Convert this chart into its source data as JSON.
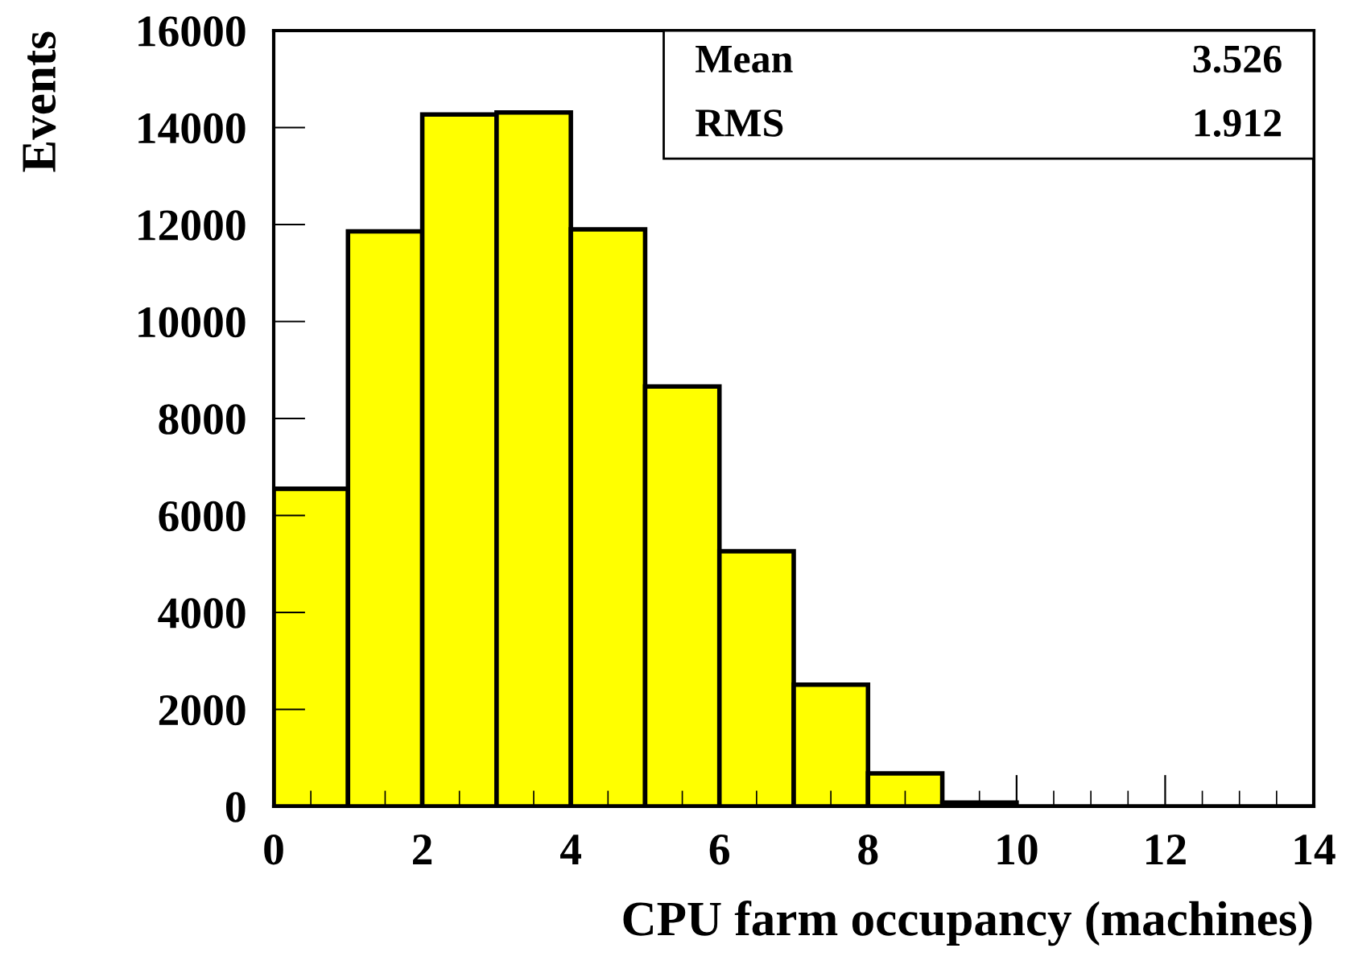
{
  "chart_data": {
    "type": "histogram",
    "xlabel": "CPU farm occupancy (machines)",
    "ylabel": "Events",
    "bins": [
      0,
      1,
      2,
      3,
      4,
      5,
      6,
      7,
      8,
      9,
      10,
      11,
      12,
      13,
      14
    ],
    "values": [
      6550,
      11860,
      14270,
      14310,
      11900,
      8660,
      5260,
      2510,
      680,
      80,
      0,
      0,
      0,
      0
    ],
    "color": "#ffff00",
    "xlim": [
      0,
      14
    ],
    "xticks": [
      0,
      2,
      4,
      6,
      8,
      10,
      12,
      14
    ],
    "ylim": [
      0,
      16000
    ],
    "yticks": [
      0,
      2000,
      4000,
      6000,
      8000,
      10000,
      12000,
      14000,
      16000
    ],
    "grid": false,
    "legend": false,
    "annotations": [
      "Mean",
      "3.526",
      "RMS",
      "1.912"
    ]
  }
}
